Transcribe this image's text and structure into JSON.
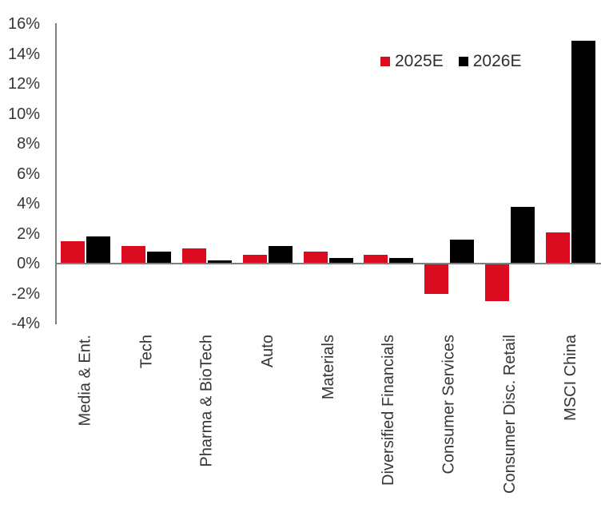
{
  "chart_data": {
    "type": "bar",
    "title": "",
    "categories": [
      "Media & Ent.",
      "Tech",
      "Pharma & BioTech",
      "Auto",
      "Materials",
      "Diversified Financials",
      "Consumer Services",
      "Consumer Disc. Retail",
      "MSCI China"
    ],
    "series": [
      {
        "name": "2025E",
        "color": "#da0b1e",
        "values": [
          1.5,
          1.2,
          1.0,
          0.6,
          0.8,
          0.6,
          -2.0,
          -2.5,
          2.1
        ]
      },
      {
        "name": "2026E",
        "color": "#000000",
        "values": [
          1.8,
          0.8,
          0.2,
          1.2,
          0.4,
          0.4,
          1.6,
          3.8,
          14.9
        ]
      }
    ],
    "unit": "%",
    "ylim": [
      -4,
      16
    ],
    "ytick_step": 2,
    "ytick_labels": [
      "16%",
      "14%",
      "12%",
      "10%",
      "8%",
      "6%",
      "4%",
      "2%",
      "0%",
      "-2%",
      "-4%"
    ],
    "grid": false,
    "legend": {
      "position": "top-right-inside",
      "items": [
        "2025E",
        "2026E"
      ]
    },
    "axis_color": "#7f7f7f",
    "text_color": "#363636"
  }
}
